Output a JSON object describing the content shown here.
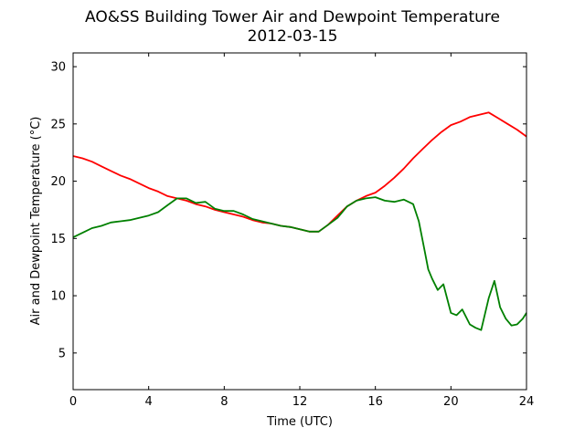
{
  "chart_data": {
    "type": "line",
    "title": "AO&SS Building Tower Air and Dewpoint Temperature",
    "subtitle": "2012-03-15",
    "xlabel": "Time (UTC)",
    "ylabel": "Air and Dewpoint Temperature (°C)",
    "xlim": [
      0,
      24
    ],
    "ylim": [
      1.8,
      31.2
    ],
    "xticks": [
      0,
      4,
      8,
      12,
      16,
      20,
      24
    ],
    "yticks": [
      5,
      10,
      15,
      20,
      25,
      30
    ],
    "grid": false,
    "legend": "none",
    "series": [
      {
        "color": "#ff0000",
        "x": [
          0,
          0.5,
          1,
          1.5,
          2,
          2.5,
          3,
          3.5,
          4,
          4.5,
          5,
          5.5,
          6,
          6.5,
          7,
          7.5,
          8,
          8.5,
          9,
          9.5,
          10,
          10.5,
          11,
          11.5,
          12,
          12.5,
          13,
          13.5,
          14,
          14.5,
          15,
          15.5,
          16,
          16.5,
          17,
          17.5,
          18,
          18.5,
          19,
          19.5,
          20,
          20.5,
          21,
          21.5,
          22,
          22.5,
          23,
          23.5,
          24
        ],
        "values": [
          22.2,
          22.0,
          21.7,
          21.3,
          20.9,
          20.5,
          20.2,
          19.8,
          19.4,
          19.1,
          18.7,
          18.5,
          18.3,
          18.0,
          17.8,
          17.5,
          17.3,
          17.1,
          16.9,
          16.6,
          16.4,
          16.3,
          16.1,
          16.0,
          15.8,
          15.6,
          15.6,
          16.2,
          17.0,
          17.8,
          18.3,
          18.7,
          19.0,
          19.6,
          20.3,
          21.1,
          22.0,
          22.8,
          23.6,
          24.3,
          24.9,
          25.2,
          25.6,
          25.8,
          26.0,
          25.5,
          25.0,
          24.5,
          23.9
        ]
      },
      {
        "color": "#008000",
        "x": [
          0,
          0.5,
          1,
          1.5,
          2,
          2.5,
          3,
          3.5,
          4,
          4.5,
          5,
          5.5,
          6,
          6.5,
          7,
          7.5,
          8,
          8.5,
          9,
          9.5,
          10,
          10.5,
          11,
          11.5,
          12,
          12.5,
          13,
          13.5,
          14,
          14.5,
          15,
          15.5,
          16,
          16.5,
          17,
          17.5,
          18,
          18.3,
          18.6,
          18.8,
          19,
          19.3,
          19.6,
          20,
          20.3,
          20.6,
          21,
          21.3,
          21.6,
          22,
          22.3,
          22.6,
          22.9,
          23.2,
          23.5,
          23.8,
          24
        ],
        "values": [
          15.1,
          15.5,
          15.9,
          16.1,
          16.4,
          16.5,
          16.6,
          16.8,
          17.0,
          17.3,
          17.9,
          18.5,
          18.5,
          18.1,
          18.2,
          17.6,
          17.4,
          17.4,
          17.1,
          16.7,
          16.5,
          16.3,
          16.1,
          16.0,
          15.8,
          15.6,
          15.6,
          16.2,
          16.8,
          17.8,
          18.3,
          18.5,
          18.6,
          18.3,
          18.2,
          18.4,
          18.0,
          16.5,
          14.0,
          12.3,
          11.5,
          10.5,
          11.0,
          8.5,
          8.3,
          8.8,
          7.5,
          7.2,
          7.0,
          9.8,
          11.3,
          9.0,
          8.0,
          7.4,
          7.5,
          8.0,
          8.5
        ]
      }
    ]
  }
}
